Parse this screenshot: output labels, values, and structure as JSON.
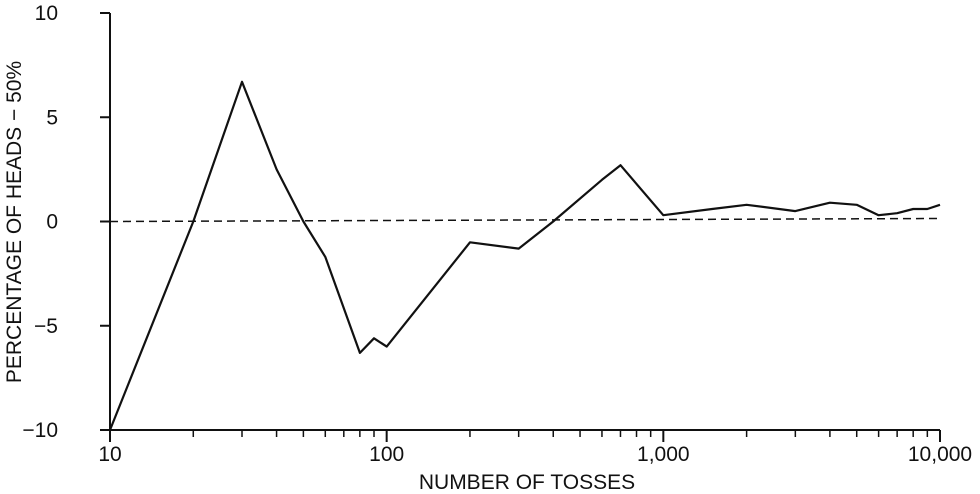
{
  "chart_data": {
    "type": "line",
    "xlabel": "NUMBER OF TOSSES",
    "ylabel": "PERCENTAGE OF HEADS − 50%",
    "x_scale": "log",
    "xlim": [
      10,
      10000
    ],
    "ylim": [
      -10,
      10
    ],
    "x_ticks": [
      {
        "value": 10,
        "label": "10"
      },
      {
        "value": 100,
        "label": "100"
      },
      {
        "value": 1000,
        "label": "1,000"
      },
      {
        "value": 10000,
        "label": "10,000"
      }
    ],
    "y_ticks": [
      {
        "value": 10,
        "label": "10"
      },
      {
        "value": 5,
        "label": "5"
      },
      {
        "value": 0,
        "label": "0"
      },
      {
        "value": -5,
        "label": "−5"
      },
      {
        "value": -10,
        "label": "−10"
      }
    ],
    "reference_line": {
      "y": 0,
      "style": "dashed"
    },
    "series": [
      {
        "points": [
          {
            "x": 10,
            "y": -10
          },
          {
            "x": 20,
            "y": 0
          },
          {
            "x": 30,
            "y": 6.7
          },
          {
            "x": 40,
            "y": 2.5
          },
          {
            "x": 50,
            "y": 0
          },
          {
            "x": 60,
            "y": -1.7
          },
          {
            "x": 80,
            "y": -6.3
          },
          {
            "x": 90,
            "y": -5.6
          },
          {
            "x": 100,
            "y": -6
          },
          {
            "x": 200,
            "y": -1
          },
          {
            "x": 300,
            "y": -1.3
          },
          {
            "x": 400,
            "y": 0
          },
          {
            "x": 600,
            "y": 2
          },
          {
            "x": 700,
            "y": 2.7
          },
          {
            "x": 1000,
            "y": 0.3
          },
          {
            "x": 1500,
            "y": 0.6
          },
          {
            "x": 2000,
            "y": 0.8
          },
          {
            "x": 3000,
            "y": 0.5
          },
          {
            "x": 4000,
            "y": 0.9
          },
          {
            "x": 5000,
            "y": 0.8
          },
          {
            "x": 6000,
            "y": 0.3
          },
          {
            "x": 7000,
            "y": 0.4
          },
          {
            "x": 8000,
            "y": 0.6
          },
          {
            "x": 9000,
            "y": 0.6
          },
          {
            "x": 10000,
            "y": 0.8
          }
        ]
      }
    ]
  }
}
